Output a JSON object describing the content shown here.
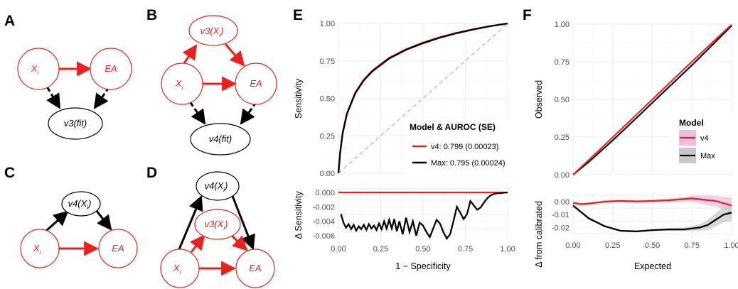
{
  "panels": {
    "A": {
      "label": "A",
      "nodes": {
        "xi": "X",
        "xi_sub": "i",
        "ea": "EA",
        "fit": "v3(fit)"
      }
    },
    "B": {
      "label": "B",
      "nodes": {
        "v3": "v3(X",
        "v3_sub": "i",
        "v3_close": ")",
        "xi": "X",
        "xi_sub": "i",
        "ea": "EA",
        "fit": "v4(fit)"
      }
    },
    "C": {
      "label": "C",
      "nodes": {
        "v4": "v4(X",
        "v4_sub": "i",
        "v4_close": ")",
        "xi": "X",
        "xi_sub": "i",
        "ea": "EA"
      }
    },
    "D": {
      "label": "D",
      "nodes": {
        "v4": "v4(X",
        "v4_sub": "i",
        "v4_close": ")",
        "v3": "v3(X",
        "v3_sub": "i",
        "v3_close": ")",
        "xi": "X",
        "xi_sub": "i",
        "ea": "EA"
      }
    },
    "E": {
      "label": "E"
    },
    "F": {
      "label": "F"
    }
  },
  "colors": {
    "red": "#e8231f",
    "black": "#000000",
    "pink_band": "#e8bfe0",
    "gray_band": "#c8c8c8",
    "diag": "#b3b3b3"
  },
  "chart_data": [
    {
      "id": "E-top",
      "type": "line",
      "xlabel": "",
      "ylabel": "Sensitivity",
      "xlim": [
        0,
        1
      ],
      "ylim": [
        0,
        1
      ],
      "yticks": [
        0.0,
        0.25,
        0.5,
        0.75,
        1.0
      ],
      "ytick_labels": [
        "0.00",
        "0.25",
        "0.50",
        "0.75",
        "1.00"
      ],
      "grid": true,
      "reference_line": "diagonal",
      "legend": {
        "title": "Model & AUROC (SE)",
        "position": "bottom-right",
        "entries": [
          {
            "label": "v4: 0.799 (0.00023)",
            "color": "#e8231f"
          },
          {
            "label": "Max: 0.795 (0.00024)",
            "color": "#000000"
          }
        ]
      },
      "series": [
        {
          "name": "v4",
          "color": "#e8231f",
          "x": [
            0,
            0.01,
            0.025,
            0.05,
            0.1,
            0.15,
            0.2,
            0.3,
            0.4,
            0.5,
            0.6,
            0.7,
            0.8,
            0.9,
            1.0
          ],
          "y": [
            0,
            0.14,
            0.27,
            0.4,
            0.54,
            0.625,
            0.685,
            0.77,
            0.828,
            0.872,
            0.908,
            0.938,
            0.962,
            0.983,
            1.0
          ]
        },
        {
          "name": "Max",
          "color": "#000000",
          "x": [
            0,
            0.01,
            0.025,
            0.05,
            0.1,
            0.15,
            0.2,
            0.3,
            0.4,
            0.5,
            0.6,
            0.7,
            0.8,
            0.9,
            1.0
          ],
          "y": [
            0,
            0.136,
            0.265,
            0.395,
            0.535,
            0.62,
            0.68,
            0.766,
            0.824,
            0.868,
            0.905,
            0.935,
            0.96,
            0.982,
            1.0
          ]
        }
      ]
    },
    {
      "id": "E-bottom",
      "type": "line",
      "xlabel": "1 − Specificity",
      "ylabel": "Δ Sensitivity",
      "xlim": [
        0,
        1
      ],
      "ylim": [
        -0.0068,
        0.0005
      ],
      "xticks": [
        0.0,
        0.25,
        0.5,
        0.75,
        1.0
      ],
      "xtick_labels": [
        "0.00",
        "0.25",
        "0.50",
        "0.75",
        "1.00"
      ],
      "yticks": [
        0.0,
        -0.002,
        -0.004,
        -0.006
      ],
      "ytick_labels": [
        "0.000",
        "-0.002",
        "-0.004",
        "-0.006"
      ],
      "grid": true,
      "series": [
        {
          "name": "v4",
          "color": "#e8231f",
          "x": [
            0,
            1
          ],
          "y": [
            0,
            0
          ]
        },
        {
          "name": "Max",
          "color": "#000000",
          "x": [
            0.015,
            0.03,
            0.045,
            0.06,
            0.075,
            0.09,
            0.105,
            0.12,
            0.135,
            0.15,
            0.165,
            0.18,
            0.195,
            0.21,
            0.225,
            0.24,
            0.255,
            0.27,
            0.285,
            0.3,
            0.315,
            0.33,
            0.345,
            0.36,
            0.38,
            0.4,
            0.42,
            0.44,
            0.46,
            0.48,
            0.5,
            0.52,
            0.54,
            0.56,
            0.58,
            0.6,
            0.62,
            0.64,
            0.66,
            0.68,
            0.7,
            0.72,
            0.74,
            0.76,
            0.78,
            0.8,
            0.82,
            0.84,
            0.86,
            0.88,
            0.9,
            0.92,
            0.94,
            0.96,
            0.98,
            1.0
          ],
          "y": [
            -0.003,
            -0.0042,
            -0.0049,
            -0.0044,
            -0.0051,
            -0.0045,
            -0.0053,
            -0.0047,
            -0.0051,
            -0.0045,
            -0.0052,
            -0.0044,
            -0.005,
            -0.0046,
            -0.0052,
            -0.0043,
            -0.0051,
            -0.004,
            -0.005,
            -0.0038,
            -0.005,
            -0.0037,
            -0.0054,
            -0.004,
            -0.0058,
            -0.0035,
            -0.0055,
            -0.004,
            -0.006,
            -0.0042,
            -0.0046,
            -0.0055,
            -0.0062,
            -0.005,
            -0.0038,
            -0.0043,
            -0.0055,
            -0.0064,
            -0.0058,
            -0.004,
            -0.002,
            -0.0028,
            -0.0037,
            -0.003,
            -0.0012,
            -0.0018,
            -0.0024,
            -0.0021,
            -0.0014,
            -0.0008,
            -0.0004,
            -0.0002,
            -0.0001,
            -0.0001,
            0.0,
            0.0
          ]
        }
      ]
    },
    {
      "id": "F-top",
      "type": "line",
      "xlabel": "",
      "ylabel": "Observed",
      "xlim": [
        0,
        1
      ],
      "ylim": [
        0,
        1
      ],
      "yticks": [
        0.0,
        0.25,
        0.5,
        0.75,
        1.0
      ],
      "ytick_labels": [
        "0.00",
        "0.25",
        "0.50",
        "0.75",
        "1.00"
      ],
      "grid": true,
      "legend": {
        "title": "Model",
        "position": "right",
        "entries": [
          {
            "label": "v4",
            "color": "#e8231f",
            "band": "#e8bfe0"
          },
          {
            "label": "Max",
            "color": "#000000",
            "band": "#c8c8c8"
          }
        ]
      },
      "series": [
        {
          "name": "v4",
          "color": "#e8231f",
          "x": [
            0,
            0.1,
            0.25,
            0.5,
            0.75,
            1.0
          ],
          "y": [
            0,
            0.098,
            0.248,
            0.5,
            0.752,
            0.997
          ]
        },
        {
          "name": "Max",
          "color": "#000000",
          "x": [
            0,
            0.1,
            0.25,
            0.4,
            0.5,
            0.75,
            0.9,
            1.0
          ],
          "y": [
            0,
            0.085,
            0.228,
            0.377,
            0.478,
            0.728,
            0.884,
            0.99
          ]
        }
      ]
    },
    {
      "id": "F-bottom",
      "type": "line",
      "xlabel": "Expected",
      "ylabel": "Δ from calibrated",
      "xlim": [
        0,
        1
      ],
      "ylim": [
        -0.028,
        0.006
      ],
      "xticks": [
        0.0,
        0.25,
        0.5,
        0.75,
        1.0
      ],
      "xtick_labels": [
        "0.00",
        "0.25",
        "0.50",
        "0.75",
        "1.00"
      ],
      "yticks": [
        0.0,
        -0.01,
        -0.02
      ],
      "ytick_labels": [
        "0.00",
        "-0.01",
        "-0.02"
      ],
      "grid": true,
      "series": [
        {
          "name": "v4",
          "color": "#e8231f",
          "x": [
            0,
            0.05,
            0.1,
            0.2,
            0.3,
            0.4,
            0.5,
            0.6,
            0.7,
            0.75,
            0.8,
            0.9,
            1.0
          ],
          "y": [
            -0.001,
            -0.002,
            -0.0015,
            0.0,
            0.0005,
            0.0002,
            0.0005,
            0.001,
            0.002,
            0.0025,
            0.0018,
            0.0005,
            -0.003
          ],
          "band_lower": [
            -0.002,
            -0.003,
            -0.0025,
            -0.001,
            -0.0005,
            -0.0008,
            -0.0008,
            -0.0005,
            0.0,
            0.0,
            -0.0015,
            -0.004,
            -0.008
          ],
          "band_upper": [
            0.0,
            -0.001,
            -0.0005,
            0.0008,
            0.0012,
            0.001,
            0.0015,
            0.0025,
            0.0035,
            0.0045,
            0.0048,
            0.0045,
            0.003
          ]
        },
        {
          "name": "Max",
          "color": "#000000",
          "x": [
            0,
            0.05,
            0.1,
            0.2,
            0.3,
            0.4,
            0.5,
            0.6,
            0.7,
            0.8,
            0.85,
            0.9,
            0.95,
            1.0
          ],
          "y": [
            -0.003,
            -0.008,
            -0.013,
            -0.019,
            -0.0225,
            -0.023,
            -0.022,
            -0.0215,
            -0.0215,
            -0.02,
            -0.018,
            -0.014,
            -0.01,
            -0.0085
          ],
          "band_lower": [
            -0.004,
            -0.009,
            -0.014,
            -0.0198,
            -0.0232,
            -0.0238,
            -0.0228,
            -0.0225,
            -0.0228,
            -0.0225,
            -0.022,
            -0.019,
            -0.016,
            -0.015
          ],
          "band_upper": [
            -0.002,
            -0.007,
            -0.012,
            -0.0182,
            -0.0218,
            -0.0222,
            -0.0212,
            -0.0205,
            -0.02,
            -0.0175,
            -0.014,
            -0.009,
            -0.004,
            -0.002
          ]
        }
      ]
    }
  ]
}
